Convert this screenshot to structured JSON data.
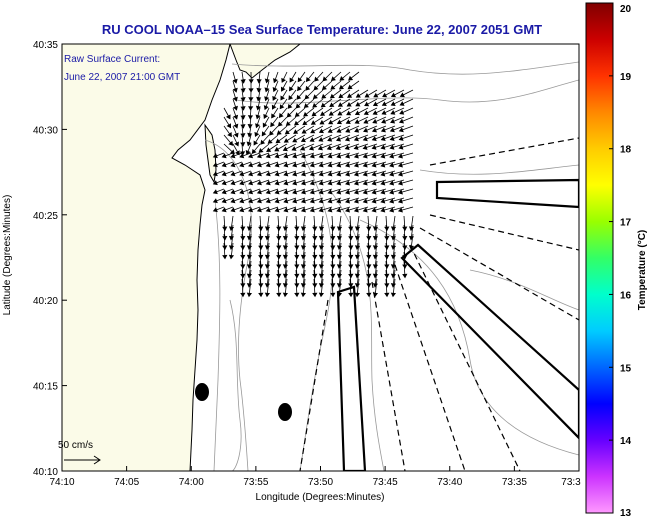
{
  "title": "RU COOL  NOAA–15  Sea Surface Temperature:  June 22, 2007 2051 GMT",
  "current_note": {
    "line1": "Raw Surface Current:",
    "line2": "June 22, 2007 21:00 GMT"
  },
  "axes": {
    "xlabel": "Longitude (Degrees:Minutes)",
    "ylabel": "Latitude (Degrees:Minutes)",
    "x_ticks": [
      "74:10",
      "74:05",
      "74:00",
      "73:55",
      "73:50",
      "73:45",
      "73:40",
      "73:35",
      "73:3"
    ],
    "y_ticks": [
      "40:35",
      "40:30",
      "40:25",
      "40:20",
      "40:15",
      "40:10"
    ]
  },
  "colorbar": {
    "label": "Temperature (°C)",
    "ticks": [
      "20",
      "19",
      "18",
      "17",
      "16",
      "15",
      "14",
      "13"
    ],
    "min": 13,
    "max": 20,
    "colors": [
      "#ff99ff",
      "#cc33ff",
      "#6600ff",
      "#0000ff",
      "#0066ff",
      "#00ccff",
      "#00ffcc",
      "#33ff66",
      "#99ff00",
      "#ffff00",
      "#ffcc00",
      "#ff8800",
      "#ff3300",
      "#cc0000",
      "#800000"
    ]
  },
  "scale_label": "50 cm/s",
  "colors": {
    "title": "#1a1aa6",
    "land": "#fbfbe8",
    "sea": "#ffffff",
    "contour": "#999999",
    "vector": "#000000"
  }
}
